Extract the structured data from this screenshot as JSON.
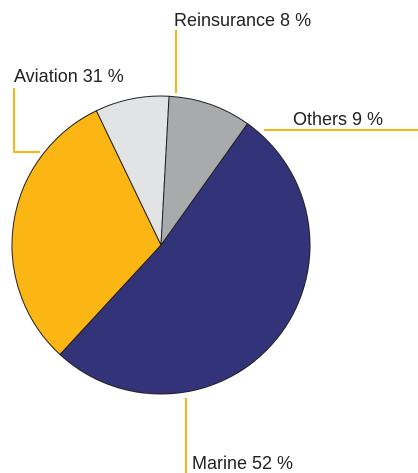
{
  "chart_data": {
    "type": "pie",
    "slices": [
      {
        "label": "Marine 52 %",
        "name": "Marine",
        "value": 52,
        "color": "#33337a"
      },
      {
        "label": "Aviation 31 %",
        "name": "Aviation",
        "value": 31,
        "color": "#fbb614"
      },
      {
        "label": "Reinsurance 8 %",
        "name": "Reinsurance",
        "value": 8,
        "color": "#e2e3e5"
      },
      {
        "label": "Others 9 %",
        "name": "Others",
        "value": 9,
        "color": "#a9aaac"
      }
    ],
    "leader_color": "#fbb614",
    "slice_border_color": "#222222"
  }
}
